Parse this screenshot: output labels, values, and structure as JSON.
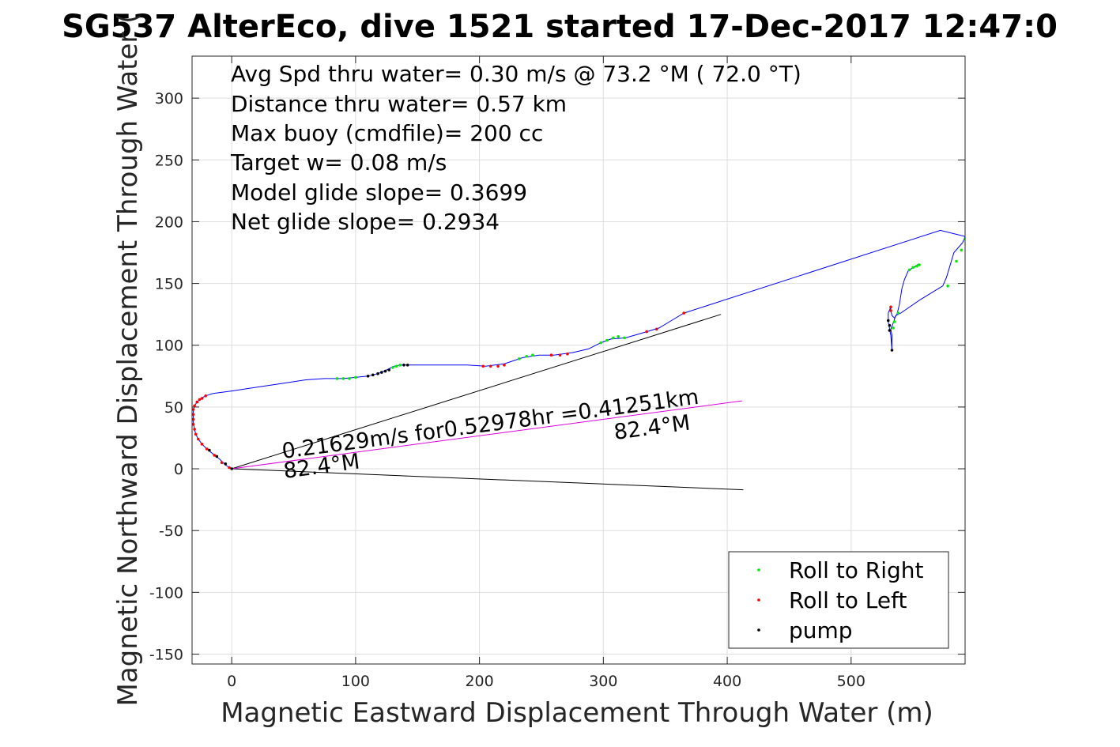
{
  "chart_data": {
    "type": "line",
    "title": "SG537 AlterEco, dive 1521 started 17-Dec-2017 12:47:0",
    "xlabel": "Magnetic Eastward Displacement Through Water (m)",
    "ylabel": "Magnetic Northward Displacement Through Water (",
    "xlim": [
      -32,
      592
    ],
    "ylim": [
      -158,
      334
    ],
    "x_ticks": [
      0,
      100,
      200,
      300,
      400,
      500
    ],
    "y_ticks": [
      -150,
      -100,
      -50,
      0,
      50,
      100,
      150,
      200,
      250,
      300
    ],
    "grid": true,
    "legend_position": "bottom-right",
    "info_lines": [
      "Avg Spd thru water=  0.30 m/s @  73.2 °M ( 72.0 °T)",
      "Distance thru water=  0.57 km",
      "Max buoy (cmdfile)= 200 cc",
      "Target w= 0.08 m/s",
      "Model glide slope= 0.3699",
      "Net glide slope= 0.2934"
    ],
    "annotations": {
      "current": "0.21629m/s for0.52978hr =0.41251km",
      "heading_start": "82.4°M",
      "heading_end": "82.4°M"
    },
    "legend": [
      {
        "label": "Roll to Right",
        "color": "#00ee00"
      },
      {
        "label": "Roll to Left",
        "color": "#ff0000"
      },
      {
        "label": "pump",
        "color": "#000000"
      }
    ],
    "colors": {
      "track": "#0000ff",
      "current_vector": "#dd00dd",
      "heading_lines": "#000000",
      "grid": "#dddddd"
    },
    "track": [
      [
        0,
        0
      ],
      [
        -5,
        3
      ],
      [
        -10,
        8
      ],
      [
        -15,
        12
      ],
      [
        -20,
        16
      ],
      [
        -24,
        20
      ],
      [
        -27,
        24
      ],
      [
        -29,
        28
      ],
      [
        -30,
        32
      ],
      [
        -31,
        37
      ],
      [
        -31,
        42
      ],
      [
        -31,
        47
      ],
      [
        -30,
        51
      ],
      [
        -28,
        54
      ],
      [
        -25,
        57
      ],
      [
        -21,
        59
      ],
      [
        -15,
        61
      ],
      [
        0,
        63
      ],
      [
        20,
        66
      ],
      [
        40,
        69
      ],
      [
        60,
        72
      ],
      [
        75,
        73
      ],
      [
        90,
        73
      ],
      [
        100,
        74
      ],
      [
        110,
        75
      ],
      [
        118,
        77
      ],
      [
        125,
        80
      ],
      [
        131,
        83
      ],
      [
        136,
        84
      ],
      [
        142,
        84
      ],
      [
        160,
        84
      ],
      [
        190,
        84
      ],
      [
        205,
        83
      ],
      [
        220,
        85
      ],
      [
        235,
        90
      ],
      [
        248,
        92
      ],
      [
        260,
        92
      ],
      [
        275,
        94
      ],
      [
        288,
        97
      ],
      [
        298,
        102
      ],
      [
        306,
        105
      ],
      [
        318,
        106
      ],
      [
        335,
        111
      ],
      [
        345,
        114
      ],
      [
        355,
        120
      ],
      [
        365,
        126
      ],
      [
        572,
        193
      ],
      [
        592,
        188
      ],
      [
        590,
        183
      ],
      [
        583,
        175
      ],
      [
        577,
        155
      ],
      [
        574,
        148
      ],
      [
        556,
        137
      ],
      [
        540,
        126
      ],
      [
        536,
        124
      ],
      [
        534,
        118
      ],
      [
        532,
        113
      ],
      [
        533,
        108
      ],
      [
        533,
        102
      ],
      [
        533,
        96
      ],
      [
        532,
        108
      ],
      [
        530,
        119
      ],
      [
        530,
        126
      ],
      [
        532,
        131
      ],
      [
        532,
        128
      ],
      [
        533,
        124
      ],
      [
        535,
        122
      ],
      [
        537,
        125
      ],
      [
        539,
        133
      ],
      [
        541,
        146
      ],
      [
        543,
        153
      ],
      [
        546,
        160
      ],
      [
        550,
        163
      ],
      [
        552,
        164
      ],
      [
        555,
        166
      ]
    ],
    "points": [
      [
        -2,
        1,
        "red"
      ],
      [
        -8,
        5,
        "red"
      ],
      [
        -14,
        11,
        "red"
      ],
      [
        -20,
        16,
        "red"
      ],
      [
        -24,
        20,
        "red"
      ],
      [
        -27,
        24,
        "red"
      ],
      [
        -29,
        28,
        "red"
      ],
      [
        -30,
        32,
        "red"
      ],
      [
        -31,
        36,
        "red"
      ],
      [
        -31,
        40,
        "red"
      ],
      [
        -31,
        44,
        "red"
      ],
      [
        -31,
        48,
        "red"
      ],
      [
        -30,
        51,
        "red"
      ],
      [
        -28,
        54,
        "red"
      ],
      [
        -26,
        56,
        "red"
      ],
      [
        -24,
        57,
        "red"
      ],
      [
        -21,
        59,
        "red"
      ],
      [
        0,
        0,
        "black"
      ],
      [
        -5,
        4,
        "black"
      ],
      [
        -12,
        10,
        "black"
      ],
      [
        -18,
        15,
        "black"
      ],
      [
        85,
        73,
        "green"
      ],
      [
        90,
        73,
        "green"
      ],
      [
        95,
        73,
        "green"
      ],
      [
        100,
        74,
        "green"
      ],
      [
        110,
        75,
        "black"
      ],
      [
        114,
        76,
        "black"
      ],
      [
        118,
        77,
        "black"
      ],
      [
        121,
        78,
        "black"
      ],
      [
        124,
        79,
        "black"
      ],
      [
        127,
        80,
        "black"
      ],
      [
        130,
        82,
        "green"
      ],
      [
        133,
        83,
        "green"
      ],
      [
        136,
        84,
        "green"
      ],
      [
        139,
        84,
        "black"
      ],
      [
        142,
        84,
        "black"
      ],
      [
        203,
        83,
        "red"
      ],
      [
        209,
        83,
        "red"
      ],
      [
        215,
        83,
        "red"
      ],
      [
        220,
        84,
        "red"
      ],
      [
        232,
        89,
        "green"
      ],
      [
        238,
        91,
        "green"
      ],
      [
        243,
        92,
        "green"
      ],
      [
        258,
        92,
        "red"
      ],
      [
        265,
        92,
        "red"
      ],
      [
        271,
        93,
        "red"
      ],
      [
        298,
        102,
        "green"
      ],
      [
        303,
        104,
        "green"
      ],
      [
        308,
        106,
        "green"
      ],
      [
        312,
        107,
        "green"
      ],
      [
        317,
        106,
        "green"
      ],
      [
        335,
        111,
        "red"
      ],
      [
        343,
        113,
        "red"
      ],
      [
        365,
        126,
        "red"
      ],
      [
        578,
        148,
        "green"
      ],
      [
        585,
        168,
        "green"
      ],
      [
        589,
        177,
        "green"
      ],
      [
        592,
        186,
        "green"
      ],
      [
        547,
        161,
        "green"
      ],
      [
        550,
        163,
        "green"
      ],
      [
        553,
        164,
        "green"
      ],
      [
        555,
        165,
        "green"
      ],
      [
        538,
        126,
        "green"
      ],
      [
        535,
        119,
        "green"
      ],
      [
        534,
        114,
        "green"
      ],
      [
        532,
        128,
        "red"
      ],
      [
        532,
        131,
        "red"
      ],
      [
        530,
        120,
        "black"
      ],
      [
        531,
        116,
        "black"
      ],
      [
        531,
        112,
        "black"
      ],
      [
        533,
        96,
        "black"
      ]
    ],
    "current_vector": [
      [
        0,
        0
      ],
      [
        412,
        55
      ]
    ],
    "heading_line_upper": [
      [
        0,
        0
      ],
      [
        395,
        125
      ]
    ],
    "heading_line_lower": [
      [
        0,
        0
      ],
      [
        413,
        -17
      ]
    ]
  }
}
